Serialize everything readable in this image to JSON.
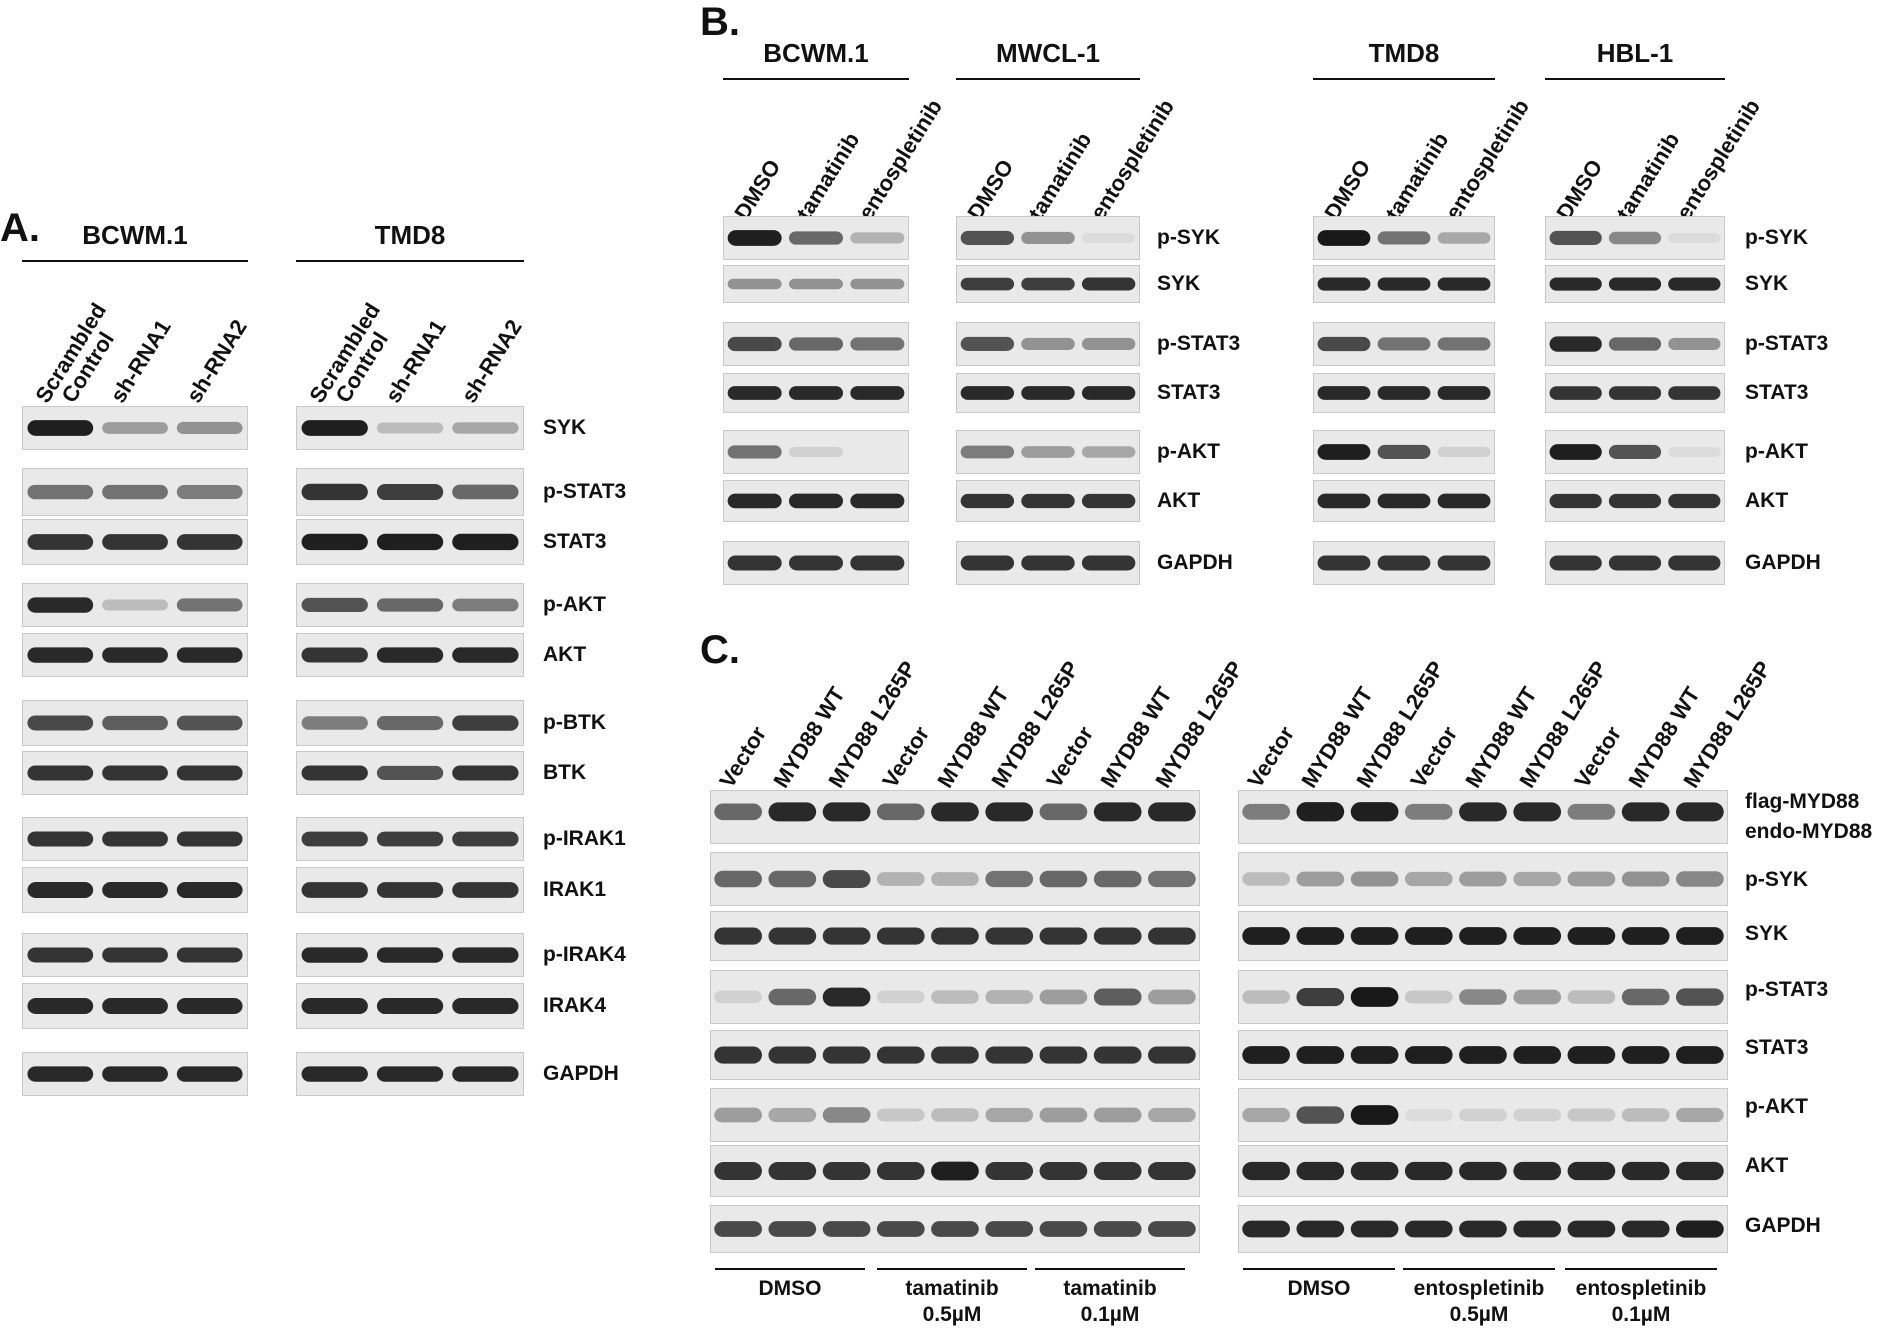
{
  "panels": {
    "a": {
      "letter": "A."
    },
    "b": {
      "letter": "B."
    },
    "c": {
      "letter": "C."
    }
  },
  "panel_a": {
    "groups": [
      {
        "name": "BCWM.1",
        "lanes": [
          "Scrambled\nControl",
          "sh-RNA1",
          "sh-RNA2"
        ]
      },
      {
        "name": "TMD8",
        "lanes": [
          "Scrambled\nControl",
          "sh-RNA1",
          "sh-RNA2"
        ]
      }
    ],
    "proteins": [
      "SYK",
      "p-STAT3",
      "STAT3",
      "p-AKT",
      "AKT",
      "p-BTK",
      "BTK",
      "p-IRAK1",
      "IRAK1",
      "p-IRAK4",
      "IRAK4",
      "GAPDH"
    ]
  },
  "panel_b": {
    "groups": [
      {
        "name": "BCWM.1",
        "lanes": [
          "DMSO",
          "tamatinib",
          "entospletinib"
        ]
      },
      {
        "name": "MWCL-1",
        "lanes": [
          "DMSO",
          "tamatinib",
          "entospletinib"
        ]
      },
      {
        "name": "TMD8",
        "lanes": [
          "DMSO",
          "tamatinib",
          "entospletinib"
        ]
      },
      {
        "name": "HBL-1",
        "lanes": [
          "DMSO",
          "tamatinib",
          "entospletinib"
        ]
      }
    ],
    "proteins": [
      "p-SYK",
      "SYK",
      "p-STAT3",
      "STAT3",
      "p-AKT",
      "AKT",
      "GAPDH"
    ]
  },
  "panel_c": {
    "lanes": [
      "Vector",
      "MYD88 WT",
      "MYD88 L265P",
      "Vector",
      "MYD88 WT",
      "MYD88 L265P",
      "Vector",
      "MYD88 WT",
      "MYD88 L265P"
    ],
    "proteins": [
      "flag-MYD88",
      "endo-MYD88",
      "p-SYK",
      "SYK",
      "p-STAT3",
      "STAT3",
      "p-AKT",
      "AKT",
      "GAPDH"
    ],
    "left_conditions": [
      "DMSO",
      "tamatinib\n0.5µM",
      "tamatinib\n0.1µM"
    ],
    "right_conditions": [
      "DMSO",
      "entospletinib\n0.5µM",
      "entospletinib\n0.1µM"
    ]
  },
  "colors": {
    "ink": "#111111",
    "membrane": "#e9e9e9",
    "band": "#1a1a1a"
  }
}
